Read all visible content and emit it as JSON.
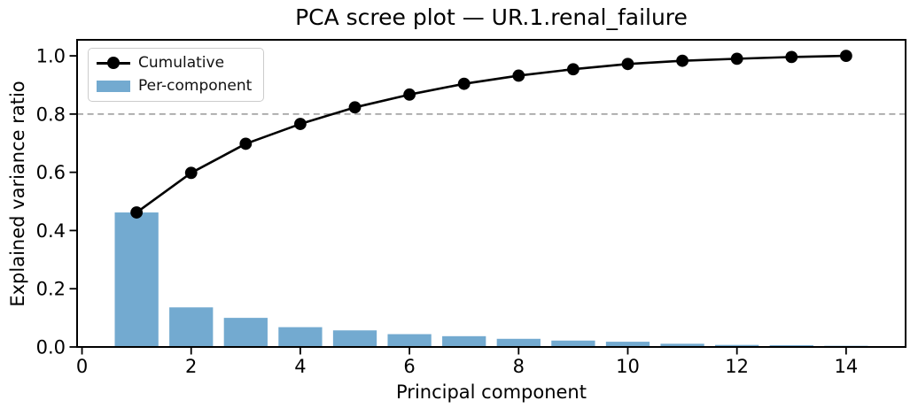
{
  "chart_data": {
    "type": "bar+line",
    "title": "PCA scree plot — UR.1.renal_failure",
    "xlabel": "Principal component",
    "ylabel": "Explained variance ratio",
    "categories": [
      1,
      2,
      3,
      4,
      5,
      6,
      7,
      8,
      9,
      10,
      11,
      12,
      13,
      14
    ],
    "series": [
      {
        "name": "Cumulative",
        "type": "line",
        "color": "#000000",
        "marker": "circle",
        "values": [
          0.462,
          0.598,
          0.698,
          0.766,
          0.823,
          0.867,
          0.904,
          0.932,
          0.954,
          0.972,
          0.983,
          0.99,
          0.996,
          1.0
        ]
      },
      {
        "name": "Per-component",
        "type": "bar",
        "color": "#73aad0",
        "values": [
          0.462,
          0.136,
          0.1,
          0.068,
          0.057,
          0.044,
          0.037,
          0.028,
          0.022,
          0.018,
          0.011,
          0.007,
          0.006,
          0.004
        ]
      }
    ],
    "threshold_line": {
      "y": 0.8,
      "style": "dashed",
      "color": "#a6a6a6"
    },
    "xlim": [
      -0.09,
      15.09
    ],
    "ylim": [
      0,
      1.055
    ],
    "xticks": [
      "0",
      "2",
      "4",
      "6",
      "8",
      "10",
      "12",
      "14"
    ],
    "yticks": [
      "0.0",
      "0.2",
      "0.4",
      "0.6",
      "0.8",
      "1.0"
    ],
    "bar_width_units": 0.8,
    "legend": {
      "position": "upper-left",
      "entries": [
        "Cumulative",
        "Per-component"
      ]
    },
    "grid": false,
    "axis_color": "#000000"
  }
}
